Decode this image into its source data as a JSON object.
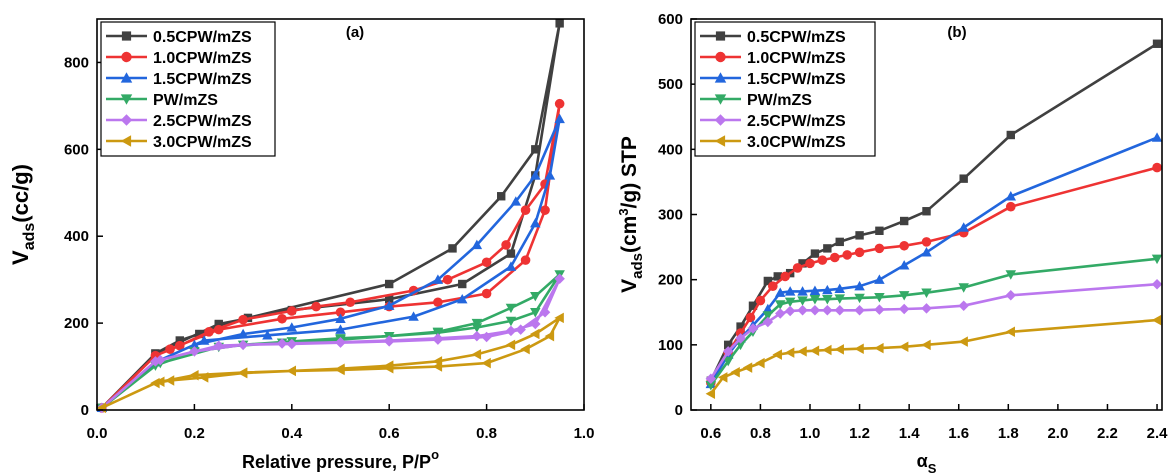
{
  "chart_data": [
    {
      "type": "line",
      "panel_label": "(a)",
      "xlabel": "Relative pressure, P/P",
      "xlabel_sup": "o",
      "ylabel": "V",
      "ylabel_sub": "ads",
      "ylabel_rest": "(cc/g)",
      "xlim": [
        0,
        1.0
      ],
      "ylim": [
        0,
        900
      ],
      "xticks": [
        "0.0",
        "0.2",
        "0.4",
        "0.6",
        "0.8",
        "1.0"
      ],
      "xtick_values": [
        0,
        0.2,
        0.4,
        0.6,
        0.8,
        1.0
      ],
      "yticks": [
        "0",
        "200",
        "400",
        "600",
        "800"
      ],
      "ytick_values": [
        0,
        200,
        400,
        600,
        800
      ],
      "grid": false,
      "legend_position": "top-left",
      "series": [
        {
          "name": "0.5CPW/mZS",
          "color": "#404040",
          "marker": "square",
          "x": [
            0.01,
            0.12,
            0.17,
            0.21,
            0.25,
            0.31,
            0.6,
            0.73,
            0.83,
            0.9,
            0.95,
            0.9,
            0.85,
            0.75,
            0.6,
            0.4,
            0.25,
            0.12
          ],
          "y": [
            5,
            130,
            160,
            175,
            195,
            212,
            290,
            372,
            492,
            600,
            890,
            540,
            360,
            290,
            255,
            230,
            198,
            130
          ]
        },
        {
          "name": "1.0CPW/mZS",
          "color": "#ee3333",
          "marker": "circle",
          "x": [
            0.01,
            0.12,
            0.17,
            0.23,
            0.3,
            0.4,
            0.45,
            0.52,
            0.65,
            0.72,
            0.8,
            0.84,
            0.88,
            0.92,
            0.95,
            0.92,
            0.88,
            0.8,
            0.7,
            0.6,
            0.5,
            0.38,
            0.25,
            0.15
          ],
          "y": [
            5,
            125,
            148,
            180,
            208,
            228,
            238,
            248,
            275,
            300,
            340,
            380,
            460,
            520,
            705,
            460,
            345,
            268,
            248,
            238,
            225,
            210,
            185,
            140
          ]
        },
        {
          "name": "1.5CPW/mZS",
          "color": "#2266dd",
          "marker": "triangle-up",
          "x": [
            0.01,
            0.12,
            0.2,
            0.3,
            0.4,
            0.5,
            0.6,
            0.7,
            0.78,
            0.86,
            0.9,
            0.95,
            0.93,
            0.9,
            0.85,
            0.75,
            0.65,
            0.5,
            0.35,
            0.22,
            0.12
          ],
          "y": [
            5,
            110,
            150,
            175,
            190,
            210,
            240,
            300,
            380,
            480,
            540,
            670,
            540,
            430,
            330,
            255,
            215,
            185,
            172,
            160,
            110
          ]
        },
        {
          "name": "PW/mZS",
          "color": "#33aa66",
          "marker": "triangle-down",
          "x": [
            0.01,
            0.12,
            0.2,
            0.3,
            0.4,
            0.5,
            0.6,
            0.7,
            0.78,
            0.85,
            0.9,
            0.95,
            0.9,
            0.85,
            0.78,
            0.7,
            0.6,
            0.5,
            0.38,
            0.25,
            0.13
          ],
          "y": [
            5,
            102,
            135,
            150,
            158,
            165,
            170,
            180,
            200,
            235,
            262,
            312,
            225,
            205,
            190,
            178,
            170,
            162,
            155,
            145,
            108
          ]
        },
        {
          "name": "2.5CPW/mZS",
          "color": "#bb77ee",
          "marker": "diamond",
          "x": [
            0.01,
            0.12,
            0.2,
            0.3,
            0.4,
            0.5,
            0.6,
            0.7,
            0.8,
            0.87,
            0.92,
            0.95,
            0.9,
            0.85,
            0.78,
            0.7,
            0.6,
            0.5,
            0.38,
            0.25,
            0.13
          ],
          "y": [
            5,
            112,
            135,
            150,
            152,
            155,
            158,
            162,
            168,
            185,
            225,
            302,
            198,
            182,
            170,
            165,
            160,
            156,
            153,
            148,
            115
          ]
        },
        {
          "name": "3.0CPW/mZS",
          "color": "#cc9911",
          "marker": "triangle-left",
          "x": [
            0.01,
            0.12,
            0.15,
            0.22,
            0.3,
            0.4,
            0.5,
            0.6,
            0.7,
            0.8,
            0.88,
            0.93,
            0.95,
            0.9,
            0.85,
            0.78,
            0.7,
            0.6,
            0.5,
            0.4,
            0.3,
            0.2,
            0.13
          ],
          "y": [
            5,
            62,
            68,
            75,
            85,
            90,
            92,
            96,
            100,
            108,
            140,
            170,
            212,
            175,
            150,
            128,
            112,
            102,
            95,
            90,
            86,
            80,
            65
          ]
        }
      ]
    },
    {
      "type": "line",
      "panel_label": "(b)",
      "xlabel": "α",
      "xlabel_sub": "S",
      "ylabel": "V",
      "ylabel_sub": "ads",
      "ylabel_mid": "(cm",
      "ylabel_sup": "3",
      "ylabel_rest": "/g) STP",
      "xlim": [
        0.52,
        2.42
      ],
      "ylim": [
        0,
        600
      ],
      "xticks": [
        "0.6",
        "0.8",
        "1.0",
        "1.2",
        "1.4",
        "1.6",
        "1.8",
        "2.0",
        "2.2",
        "2.4"
      ],
      "xtick_values": [
        0.6,
        0.8,
        1.0,
        1.2,
        1.4,
        1.6,
        1.8,
        2.0,
        2.2,
        2.4
      ],
      "yticks": [
        "0",
        "100",
        "200",
        "300",
        "400",
        "500",
        "600"
      ],
      "ytick_values": [
        0,
        100,
        200,
        300,
        400,
        500,
        600
      ],
      "grid": false,
      "legend_position": "top-left",
      "series": [
        {
          "name": "0.5CPW/mZS",
          "color": "#404040",
          "marker": "square",
          "x": [
            0.6,
            0.67,
            0.72,
            0.77,
            0.83,
            0.87,
            0.92,
            0.97,
            1.02,
            1.07,
            1.12,
            1.2,
            1.28,
            1.38,
            1.47,
            1.62,
            1.81,
            2.4
          ],
          "y": [
            45,
            100,
            128,
            160,
            198,
            205,
            210,
            225,
            240,
            248,
            258,
            268,
            275,
            290,
            305,
            355,
            422,
            562
          ]
        },
        {
          "name": "1.0CPW/mZS",
          "color": "#ee3333",
          "marker": "circle",
          "x": [
            0.6,
            0.67,
            0.72,
            0.76,
            0.8,
            0.85,
            0.9,
            0.95,
            1.0,
            1.05,
            1.1,
            1.15,
            1.2,
            1.28,
            1.38,
            1.47,
            1.62,
            1.81,
            2.4
          ],
          "y": [
            42,
            88,
            118,
            142,
            168,
            190,
            205,
            218,
            225,
            230,
            234,
            238,
            242,
            248,
            252,
            258,
            272,
            312,
            372
          ]
        },
        {
          "name": "1.5CPW/mZS",
          "color": "#2266dd",
          "marker": "triangle-up",
          "x": [
            0.6,
            0.67,
            0.72,
            0.77,
            0.83,
            0.88,
            0.92,
            0.97,
            1.02,
            1.07,
            1.12,
            1.2,
            1.28,
            1.38,
            1.47,
            1.62,
            1.81,
            2.4
          ],
          "y": [
            40,
            85,
            110,
            130,
            155,
            180,
            182,
            182,
            183,
            184,
            186,
            190,
            200,
            222,
            242,
            280,
            328,
            418
          ]
        },
        {
          "name": "PW/mZS",
          "color": "#33aa66",
          "marker": "triangle-down",
          "x": [
            0.6,
            0.67,
            0.72,
            0.77,
            0.83,
            0.88,
            0.92,
            0.97,
            1.02,
            1.07,
            1.12,
            1.2,
            1.28,
            1.38,
            1.47,
            1.62,
            1.81,
            2.4
          ],
          "y": [
            38,
            75,
            100,
            120,
            145,
            162,
            166,
            168,
            170,
            170,
            171,
            172,
            173,
            176,
            180,
            188,
            208,
            232
          ]
        },
        {
          "name": "2.5CPW/mZS",
          "color": "#bb77ee",
          "marker": "diamond",
          "x": [
            0.6,
            0.67,
            0.72,
            0.77,
            0.83,
            0.88,
            0.92,
            0.97,
            1.02,
            1.07,
            1.12,
            1.2,
            1.28,
            1.38,
            1.47,
            1.62,
            1.81,
            2.4
          ],
          "y": [
            48,
            90,
            110,
            125,
            135,
            148,
            152,
            153,
            153,
            153,
            153,
            153,
            154,
            155,
            156,
            160,
            176,
            193
          ]
        },
        {
          "name": "3.0CPW/mZS",
          "color": "#cc9911",
          "marker": "triangle-left",
          "x": [
            0.6,
            0.65,
            0.7,
            0.75,
            0.8,
            0.87,
            0.92,
            0.97,
            1.02,
            1.07,
            1.12,
            1.2,
            1.28,
            1.38,
            1.47,
            1.62,
            1.81,
            2.4
          ],
          "y": [
            25,
            50,
            58,
            65,
            72,
            85,
            88,
            90,
            91,
            92,
            93,
            94,
            95,
            97,
            100,
            105,
            120,
            138
          ]
        }
      ]
    }
  ]
}
